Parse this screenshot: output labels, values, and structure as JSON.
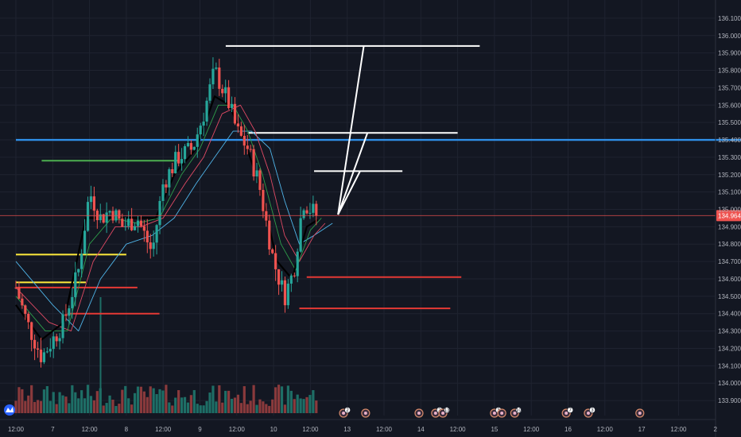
{
  "chart_data": {
    "type": "candlestick",
    "y_range": [
      133.85,
      136.15
    ],
    "y_ticks": [
      "136.100",
      "136.000",
      "135.900",
      "135.800",
      "135.700",
      "135.600",
      "135.500",
      "135.400",
      "135.300",
      "135.200",
      "135.100",
      "135.000",
      "134.900",
      "134.800",
      "134.700",
      "134.600",
      "134.500",
      "134.400",
      "134.300",
      "134.200",
      "134.100",
      "134.000",
      "133.900"
    ],
    "x_ticks": [
      "12:00",
      "7",
      "12:00",
      "8",
      "12:00",
      "9",
      "12:00",
      "10",
      "12:00",
      "13",
      "12:00",
      "14",
      "12:00",
      "15",
      "12:00",
      "16",
      "12:00",
      "17",
      "12:00",
      "2"
    ],
    "x_range": [
      0,
      20
    ],
    "last_price": 134.964,
    "last_price_label": "134.964",
    "trade_start": 0.0,
    "trade_end": 8.2,
    "candle_step": 0.085,
    "key_closes": [
      [
        0.0,
        134.55
      ],
      [
        0.3,
        134.35
      ],
      [
        0.7,
        134.15
      ],
      [
        1.0,
        134.25
      ],
      [
        1.3,
        134.35
      ],
      [
        1.7,
        134.65
      ],
      [
        2.0,
        135.1
      ],
      [
        2.3,
        134.95
      ],
      [
        2.6,
        135.0
      ],
      [
        2.9,
        134.9
      ],
      [
        3.3,
        134.95
      ],
      [
        3.7,
        134.75
      ],
      [
        4.0,
        135.15
      ],
      [
        4.4,
        135.3
      ],
      [
        4.8,
        135.35
      ],
      [
        5.1,
        135.55
      ],
      [
        5.4,
        135.8
      ],
      [
        5.8,
        135.6
      ],
      [
        6.0,
        135.45
      ],
      [
        6.3,
        135.35
      ],
      [
        6.6,
        135.15
      ],
      [
        7.0,
        134.7
      ],
      [
        7.3,
        134.5
      ],
      [
        7.55,
        134.65
      ],
      [
        7.8,
        135.05
      ],
      [
        8.0,
        135.0
      ],
      [
        8.2,
        134.96
      ]
    ],
    "ma_black": [
      [
        0.0,
        134.45
      ],
      [
        0.7,
        134.25
      ],
      [
        1.3,
        134.35
      ],
      [
        1.9,
        134.95
      ],
      [
        2.5,
        134.95
      ],
      [
        3.2,
        134.95
      ],
      [
        3.8,
        134.95
      ],
      [
        4.3,
        135.2
      ],
      [
        4.9,
        135.35
      ],
      [
        5.4,
        135.65
      ],
      [
        5.8,
        135.6
      ],
      [
        6.2,
        135.4
      ],
      [
        6.6,
        135.15
      ],
      [
        7.1,
        134.7
      ],
      [
        7.5,
        134.6
      ],
      [
        7.9,
        134.9
      ],
      [
        8.2,
        134.94
      ]
    ],
    "ma_green": [
      [
        0.0,
        134.5
      ],
      [
        0.8,
        134.3
      ],
      [
        1.4,
        134.3
      ],
      [
        2.0,
        134.8
      ],
      [
        2.6,
        134.95
      ],
      [
        3.3,
        134.92
      ],
      [
        3.9,
        134.95
      ],
      [
        4.5,
        135.2
      ],
      [
        5.0,
        135.35
      ],
      [
        5.5,
        135.6
      ],
      [
        5.9,
        135.6
      ],
      [
        6.3,
        135.45
      ],
      [
        6.7,
        135.2
      ],
      [
        7.2,
        134.8
      ],
      [
        7.6,
        134.65
      ],
      [
        8.0,
        134.88
      ],
      [
        8.3,
        134.95
      ]
    ],
    "ma_red": [
      [
        0.0,
        134.55
      ],
      [
        0.9,
        134.35
      ],
      [
        1.5,
        134.3
      ],
      [
        2.1,
        134.7
      ],
      [
        2.7,
        134.9
      ],
      [
        3.4,
        134.9
      ],
      [
        4.0,
        134.95
      ],
      [
        4.6,
        135.15
      ],
      [
        5.1,
        135.3
      ],
      [
        5.6,
        135.55
      ],
      [
        6.1,
        135.6
      ],
      [
        6.5,
        135.45
      ],
      [
        6.9,
        135.2
      ],
      [
        7.3,
        134.85
      ],
      [
        7.7,
        134.7
      ],
      [
        8.1,
        134.85
      ],
      [
        8.4,
        134.92
      ]
    ],
    "ma_blue": [
      [
        0.0,
        134.7
      ],
      [
        1.0,
        134.45
      ],
      [
        1.7,
        134.3
      ],
      [
        2.3,
        134.6
      ],
      [
        3.0,
        134.8
      ],
      [
        3.7,
        134.85
      ],
      [
        4.3,
        134.95
      ],
      [
        4.9,
        135.15
      ],
      [
        5.4,
        135.3
      ],
      [
        5.9,
        135.45
      ],
      [
        6.4,
        135.45
      ],
      [
        6.9,
        135.35
      ],
      [
        7.3,
        135.05
      ],
      [
        7.7,
        134.8
      ],
      [
        8.1,
        134.85
      ],
      [
        8.6,
        134.92
      ]
    ],
    "levels": [
      {
        "color": "#2f8fe8",
        "y": 135.4,
        "x1": 0.0,
        "x2": 20.0,
        "width": 2.4
      },
      {
        "color": "#4caf50",
        "y": 135.28,
        "x1": 0.7,
        "x2": 4.4,
        "width": 2.0
      },
      {
        "color": "#ffeb3b",
        "y": 134.74,
        "x1": 0.0,
        "x2": 3.0,
        "width": 2.0
      },
      {
        "color": "#ffeb3b",
        "y": 134.58,
        "x1": 0.0,
        "x2": 1.9,
        "width": 2.0
      },
      {
        "color": "#e53935",
        "y": 134.55,
        "x1": 0.0,
        "x2": 3.3,
        "width": 2.0
      },
      {
        "color": "#e53935",
        "y": 134.4,
        "x1": 1.4,
        "x2": 3.9,
        "width": 2.0
      },
      {
        "color": "#e53935",
        "y": 134.61,
        "x1": 7.9,
        "x2": 12.1,
        "width": 2.0
      },
      {
        "color": "#e53935",
        "y": 134.43,
        "x1": 7.7,
        "x2": 11.8,
        "width": 2.0
      },
      {
        "color": "#ffffff",
        "y": 135.94,
        "x1": 5.7,
        "x2": 12.6,
        "width": 2.0
      },
      {
        "color": "#ffffff",
        "y": 135.44,
        "x1": 6.3,
        "x2": 12.0,
        "width": 2.0
      },
      {
        "color": "#ffffff",
        "y": 135.22,
        "x1": 8.1,
        "x2": 10.5,
        "width": 2.0
      }
    ],
    "projection_origin": [
      8.75,
      134.97
    ],
    "projection_targets": [
      [
        9.45,
        135.94
      ],
      [
        9.55,
        135.44
      ],
      [
        9.35,
        135.22
      ]
    ],
    "volume_max": 5,
    "event_markers": [
      {
        "x": 8.9,
        "label": "2"
      },
      {
        "x": 9.5,
        "label": ""
      },
      {
        "x": 10.95,
        "label": ""
      },
      {
        "x": 11.4,
        "label": "2"
      },
      {
        "x": 11.6,
        "label": "13"
      },
      {
        "x": 13.0,
        "label": "3"
      },
      {
        "x": 13.2,
        "label": ""
      },
      {
        "x": 13.55,
        "label": "10"
      },
      {
        "x": 14.95,
        "label": "7"
      },
      {
        "x": 15.55,
        "label": "3"
      },
      {
        "x": 16.95,
        "label": ""
      }
    ]
  },
  "colors": {
    "background": "#131722",
    "grid": "#1f2330",
    "up": "#26a69a",
    "down": "#ef5350",
    "up_volume": "#1e6e66",
    "down_volume": "#8a3a3c",
    "price_tag": "#ef5350",
    "last_price_line": "#ef5350"
  },
  "logo_icon": "tradingview-logo-icon"
}
